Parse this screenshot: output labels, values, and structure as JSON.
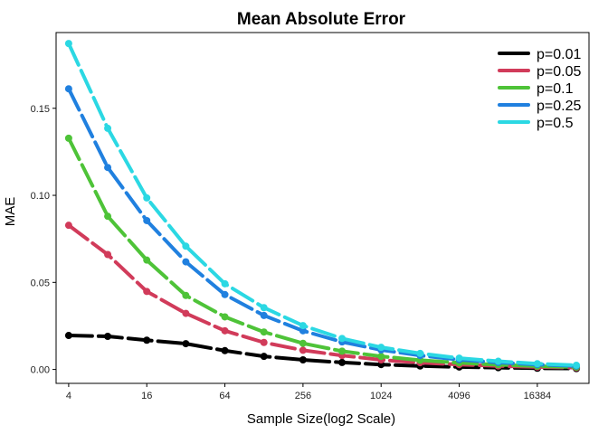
{
  "chart_data": {
    "type": "line",
    "title": "Mean Absolute Error",
    "xlabel": "Sample Size(log2 Scale)",
    "ylabel": "MAE",
    "x_scale": "log2",
    "x": [
      4,
      8,
      16,
      32,
      64,
      128,
      256,
      512,
      1024,
      2048,
      4096,
      8192,
      16384,
      32768
    ],
    "x_ticks": [
      4,
      16,
      64,
      256,
      1024,
      4096,
      16384
    ],
    "x_tick_labels": [
      "4",
      "16",
      "64",
      "256",
      "1024",
      "4096",
      "16384"
    ],
    "y_ticks": [
      0,
      0.05,
      0.1,
      0.15
    ],
    "y_tick_labels": [
      "0.00",
      "0.05",
      "0.10",
      "0.15"
    ],
    "xlim": [
      3.2,
      41000
    ],
    "ylim": [
      -0.008,
      0.1935
    ],
    "grid": false,
    "legend_position": "top-right",
    "series": [
      {
        "name": "p=0.01",
        "color": "#000000",
        "values": [
          0.0195,
          0.019,
          0.0168,
          0.0148,
          0.0108,
          0.0075,
          0.0055,
          0.004,
          0.0028,
          0.002,
          0.0014,
          0.001,
          0.0007,
          0.0005
        ]
      },
      {
        "name": "p=0.05",
        "color": "#D13B5A",
        "values": [
          0.0828,
          0.066,
          0.0448,
          0.0322,
          0.0222,
          0.0155,
          0.011,
          0.008,
          0.0055,
          0.0039,
          0.0028,
          0.002,
          0.0014,
          0.001
        ]
      },
      {
        "name": "p=0.1",
        "color": "#4EC338",
        "values": [
          0.1328,
          0.088,
          0.0628,
          0.0425,
          0.0302,
          0.0215,
          0.015,
          0.0105,
          0.0075,
          0.0053,
          0.0038,
          0.0027,
          0.0019,
          0.0013
        ]
      },
      {
        "name": "p=0.25",
        "color": "#2080DF",
        "values": [
          0.1612,
          0.116,
          0.0855,
          0.0618,
          0.043,
          0.031,
          0.0222,
          0.0158,
          0.0112,
          0.008,
          0.0056,
          0.004,
          0.0028,
          0.002
        ]
      },
      {
        "name": "p=0.5",
        "color": "#2BD8E3",
        "values": [
          0.1872,
          0.1385,
          0.0985,
          0.0708,
          0.0492,
          0.0355,
          0.0252,
          0.0178,
          0.0127,
          0.0092,
          0.0065,
          0.0047,
          0.0033,
          0.0024
        ]
      }
    ]
  }
}
